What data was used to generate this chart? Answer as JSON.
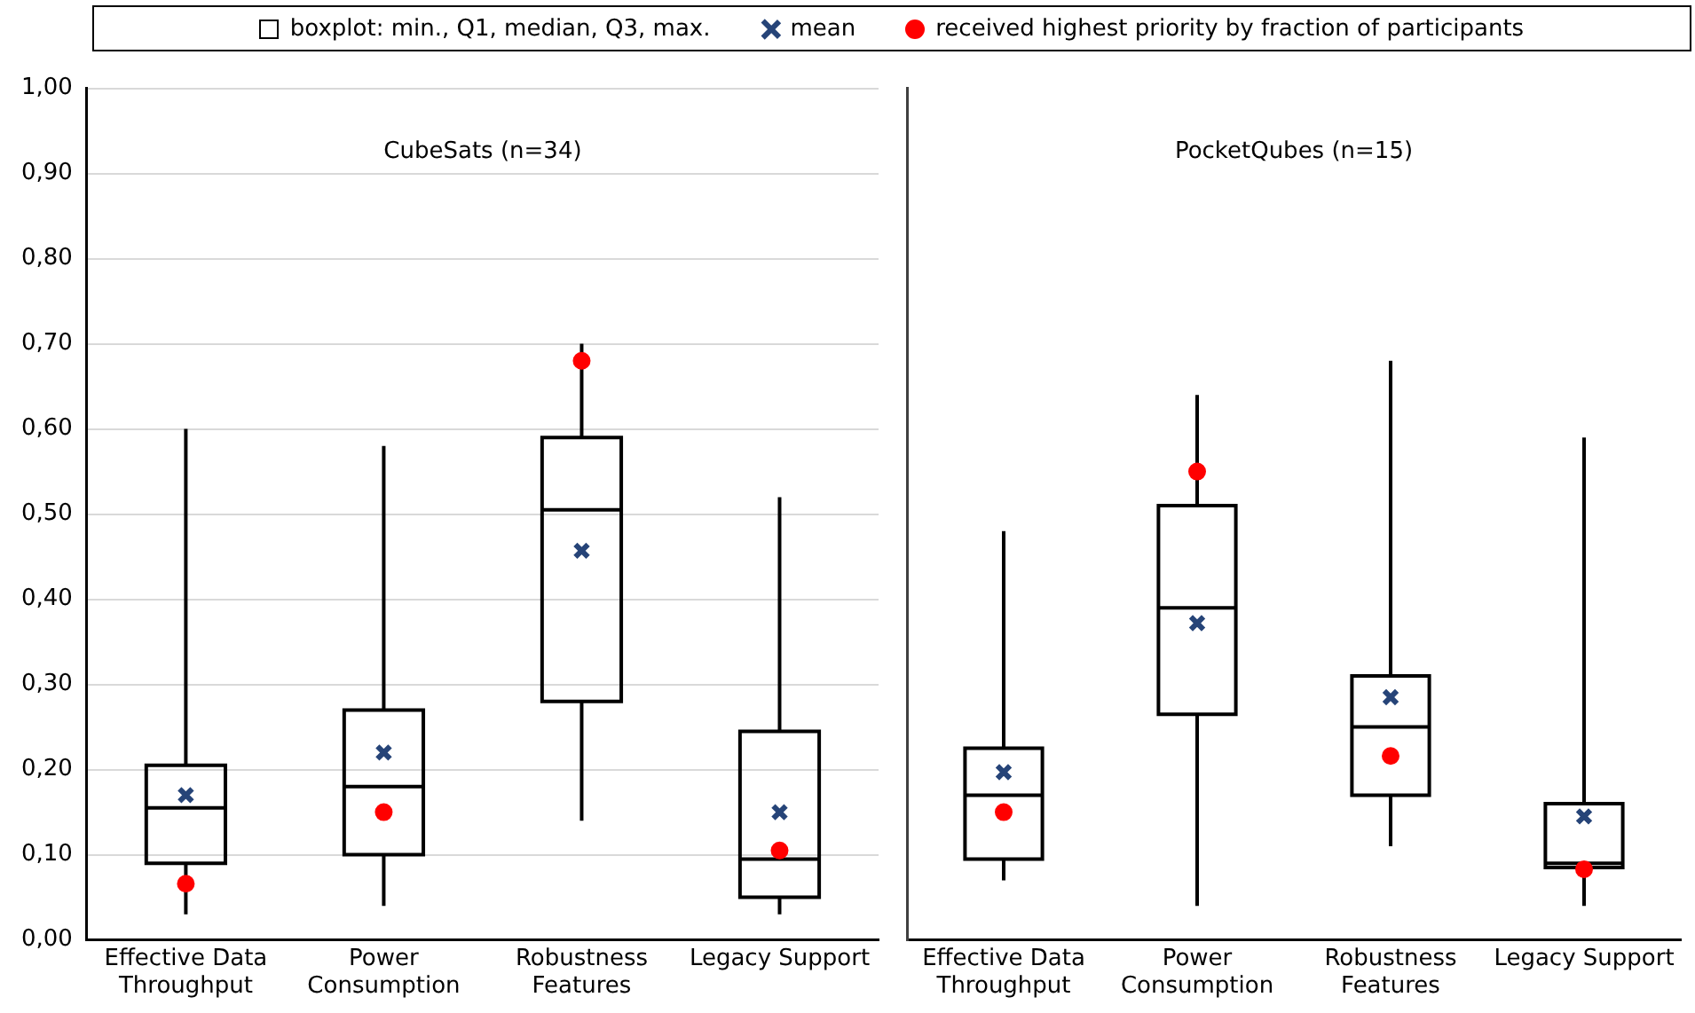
{
  "chart_data": [
    {
      "type": "box",
      "title": "CubeSats (n=34)",
      "categories": [
        "Effective Data Throughput",
        "Power Consumption",
        "Robustness Features",
        "Legacy Support"
      ],
      "series": [
        {
          "name": "boxplot: min., Q1, median, Q3, max.",
          "color": "#000000",
          "boxes": [
            {
              "low": 0.03,
              "q1": 0.09,
              "median": 0.155,
              "q3": 0.205,
              "high": 0.6
            },
            {
              "low": 0.04,
              "q1": 0.1,
              "median": 0.18,
              "q3": 0.27,
              "high": 0.58
            },
            {
              "low": 0.14,
              "q1": 0.28,
              "median": 0.505,
              "q3": 0.59,
              "high": 0.7
            },
            {
              "low": 0.03,
              "q1": 0.05,
              "median": 0.095,
              "q3": 0.245,
              "high": 0.52
            }
          ]
        },
        {
          "name": "mean",
          "type": "scatter",
          "marker": "cross",
          "color": "#264478",
          "values": [
            0.17,
            0.22,
            0.457,
            0.15
          ]
        },
        {
          "name": "received highest priority by fraction of participants",
          "type": "scatter",
          "marker": "circle",
          "color": "#ff0000",
          "values": [
            0.066,
            0.15,
            0.68,
            0.105
          ]
        }
      ],
      "ylim": [
        0,
        1
      ],
      "yticks": [
        {
          "value": 0,
          "label": "0,00"
        },
        {
          "value": 0.1,
          "label": "0,10"
        },
        {
          "value": 0.2,
          "label": "0,20"
        },
        {
          "value": 0.3,
          "label": "0,30"
        },
        {
          "value": 0.4,
          "label": "0,40"
        },
        {
          "value": 0.5,
          "label": "0,50"
        },
        {
          "value": 0.6,
          "label": "0,60"
        },
        {
          "value": 0.7,
          "label": "0,70"
        },
        {
          "value": 0.8,
          "label": "0,80"
        },
        {
          "value": 0.9,
          "label": "0,90"
        },
        {
          "value": 1,
          "label": "1,00"
        }
      ],
      "grid": "y",
      "legend": "top"
    },
    {
      "type": "box",
      "title": "PocketQubes (n=15)",
      "categories": [
        "Effective Data Throughput",
        "Power Consumption",
        "Robustness Features",
        "Legacy Support"
      ],
      "series": [
        {
          "color": "#000000",
          "boxes": [
            {
              "low": 0.07,
              "q1": 0.095,
              "median": 0.17,
              "q3": 0.225,
              "high": 0.48
            },
            {
              "low": 0.04,
              "q1": 0.265,
              "median": 0.39,
              "q3": 0.51,
              "high": 0.64
            },
            {
              "low": 0.11,
              "q1": 0.17,
              "median": 0.25,
              "q3": 0.31,
              "high": 0.68
            },
            {
              "low": 0.04,
              "q1": 0.085,
              "median": 0.09,
              "q3": 0.16,
              "high": 0.59
            }
          ]
        },
        {
          "type": "scatter",
          "marker": "cross",
          "color": "#264478",
          "values": [
            0.197,
            0.372,
            0.285,
            0.145
          ]
        },
        {
          "type": "scatter",
          "marker": "circle",
          "color": "#ff0000",
          "values": [
            0.15,
            0.55,
            0.216,
            0.083
          ]
        }
      ],
      "ylim": [
        0,
        1
      ],
      "yticks": [
        {
          "value": 0,
          "label": null
        },
        {
          "value": 0.1,
          "label": null
        },
        {
          "value": 0.2,
          "label": null
        },
        {
          "value": 0.3,
          "label": null
        },
        {
          "value": 0.4,
          "label": null
        },
        {
          "value": 0.5,
          "label": null
        },
        {
          "value": 0.6,
          "label": null
        },
        {
          "value": 0.7,
          "label": null
        },
        {
          "value": 0.8,
          "label": null
        },
        {
          "value": 0.9,
          "label": null
        },
        {
          "value": 1,
          "label": null
        }
      ],
      "grid": "y",
      "tick_labels": "x"
    }
  ]
}
